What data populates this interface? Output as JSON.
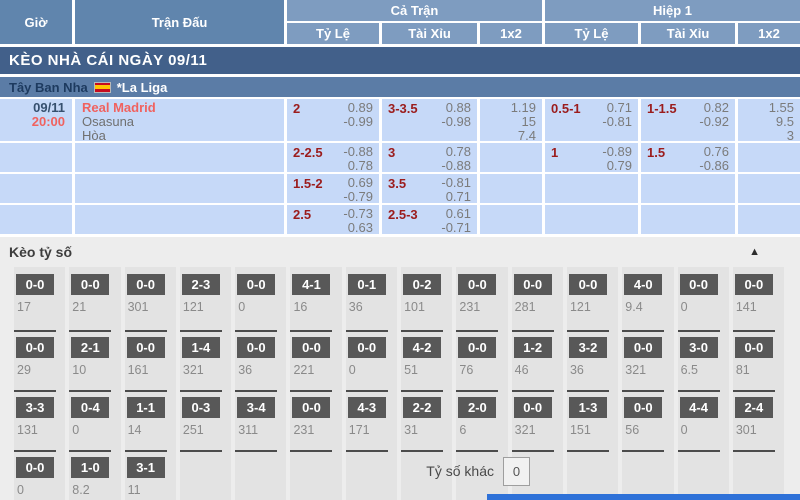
{
  "header": {
    "col_time": "Giờ",
    "col_match": "Trận Đấu",
    "group_full": "Cả Trận",
    "group_half": "Hiệp 1",
    "sub_odds": "Tỷ Lệ",
    "sub_ou": "Tài Xỉu",
    "sub_1x2": "1x2"
  },
  "title_bar": "KÈO NHÀ CÁI NGÀY 09/11",
  "league_bar": {
    "country": "Tây Ban Nha",
    "flag_icon": "spain-flag",
    "league": "*La Liga"
  },
  "match": {
    "date": "09/11",
    "time": "20:00",
    "home": "Real Madrid",
    "away": "Osasuna",
    "draw_label": "Hòa"
  },
  "odds_rows": [
    {
      "ft_hdp": {
        "line": "2",
        "top": "0.89",
        "bottom": "-0.99"
      },
      "ft_ou": {
        "line": "3-3.5",
        "top": "0.88",
        "bottom": "-0.98"
      },
      "ft_1x2": {
        "l1": "1.19",
        "l2": "15",
        "l3": "7.4"
      },
      "h1_hdp": {
        "line": "0.5-1",
        "top": "0.71",
        "bottom": "-0.81"
      },
      "h1_ou": {
        "line": "1-1.5",
        "top": "0.82",
        "bottom": "-0.92"
      },
      "h1_1x2": {
        "l1": "1.55",
        "l2": "9.5",
        "l3": "3"
      }
    },
    {
      "ft_hdp": {
        "line": "2-2.5",
        "top": "-0.88",
        "bottom": "0.78"
      },
      "ft_ou": {
        "line": "3",
        "top": "0.78",
        "bottom": "-0.88"
      },
      "h1_hdp": {
        "line": "1",
        "top": "-0.89",
        "bottom": "0.79"
      },
      "h1_ou": {
        "line": "1.5",
        "top": "0.76",
        "bottom": "-0.86"
      }
    },
    {
      "ft_hdp": {
        "line": "1.5-2",
        "top": "0.69",
        "bottom": "-0.79"
      },
      "ft_ou": {
        "line": "3.5",
        "top": "-0.81",
        "bottom": "0.71"
      }
    },
    {
      "ft_hdp": {
        "line": "2.5",
        "top": "-0.73",
        "bottom": "0.63"
      },
      "ft_ou": {
        "line": "2.5-3",
        "top": "0.61",
        "bottom": "-0.71"
      }
    }
  ],
  "score_section": {
    "title": "Kèo tỷ số",
    "collapse_icon": "triangle-up",
    "columns_per_row": 14,
    "rows": [
      [
        {
          "score": "0-0",
          "odds": "17"
        },
        {
          "score": "0-0",
          "odds": "21"
        },
        {
          "score": "0-0",
          "odds": "301"
        },
        {
          "score": "2-3",
          "odds": "121"
        },
        {
          "score": "0-0",
          "odds": "0"
        },
        {
          "score": "4-1",
          "odds": "16"
        },
        {
          "score": "0-1",
          "odds": "36"
        },
        {
          "score": "0-2",
          "odds": "101"
        },
        {
          "score": "0-0",
          "odds": "231"
        },
        {
          "score": "0-0",
          "odds": "281"
        },
        {
          "score": "0-0",
          "odds": "121"
        },
        {
          "score": "4-0",
          "odds": "9.4"
        },
        {
          "score": "0-0",
          "odds": "0"
        },
        {
          "score": "0-0",
          "odds": "141"
        }
      ],
      [
        {
          "score": "0-0",
          "odds": "29"
        },
        {
          "score": "2-1",
          "odds": "10"
        },
        {
          "score": "0-0",
          "odds": "161"
        },
        {
          "score": "1-4",
          "odds": "321"
        },
        {
          "score": "0-0",
          "odds": "36"
        },
        {
          "score": "0-0",
          "odds": "221"
        },
        {
          "score": "0-0",
          "odds": "0"
        },
        {
          "score": "4-2",
          "odds": "51"
        },
        {
          "score": "0-0",
          "odds": "76"
        },
        {
          "score": "1-2",
          "odds": "46"
        },
        {
          "score": "3-2",
          "odds": "36"
        },
        {
          "score": "0-0",
          "odds": "321"
        },
        {
          "score": "3-0",
          "odds": "6.5"
        },
        {
          "score": "0-0",
          "odds": "81"
        }
      ],
      [
        {
          "score": "3-3",
          "odds": "131"
        },
        {
          "score": "0-4",
          "odds": "0"
        },
        {
          "score": "1-1",
          "odds": "14"
        },
        {
          "score": "0-3",
          "odds": "251"
        },
        {
          "score": "3-4",
          "odds": "311"
        },
        {
          "score": "0-0",
          "odds": "231"
        },
        {
          "score": "4-3",
          "odds": "171"
        },
        {
          "score": "2-2",
          "odds": "31"
        },
        {
          "score": "2-0",
          "odds": "6"
        },
        {
          "score": "0-0",
          "odds": "321"
        },
        {
          "score": "1-3",
          "odds": "151"
        },
        {
          "score": "0-0",
          "odds": "56"
        },
        {
          "score": "4-4",
          "odds": "0"
        },
        {
          "score": "2-4",
          "odds": "301"
        }
      ],
      [
        {
          "score": "0-0",
          "odds": "0"
        },
        {
          "score": "1-0",
          "odds": "8.2"
        },
        {
          "score": "3-1",
          "odds": "11"
        }
      ]
    ],
    "other_label": "Tỷ số khác",
    "other_value": "0"
  },
  "colors": {
    "header_blue_dark": "#6085ad",
    "header_blue_light": "#7e9cc0",
    "title_navy": "#42608a",
    "league_blue": "#5b7ca6",
    "row_blue": "#c6d9f8",
    "handicap_maroon": "#9b1c1c",
    "team_red": "#f0625f",
    "score_box_gray": "#585858",
    "section_gray": "#ededed",
    "strip_blue": "#2e71d8"
  }
}
